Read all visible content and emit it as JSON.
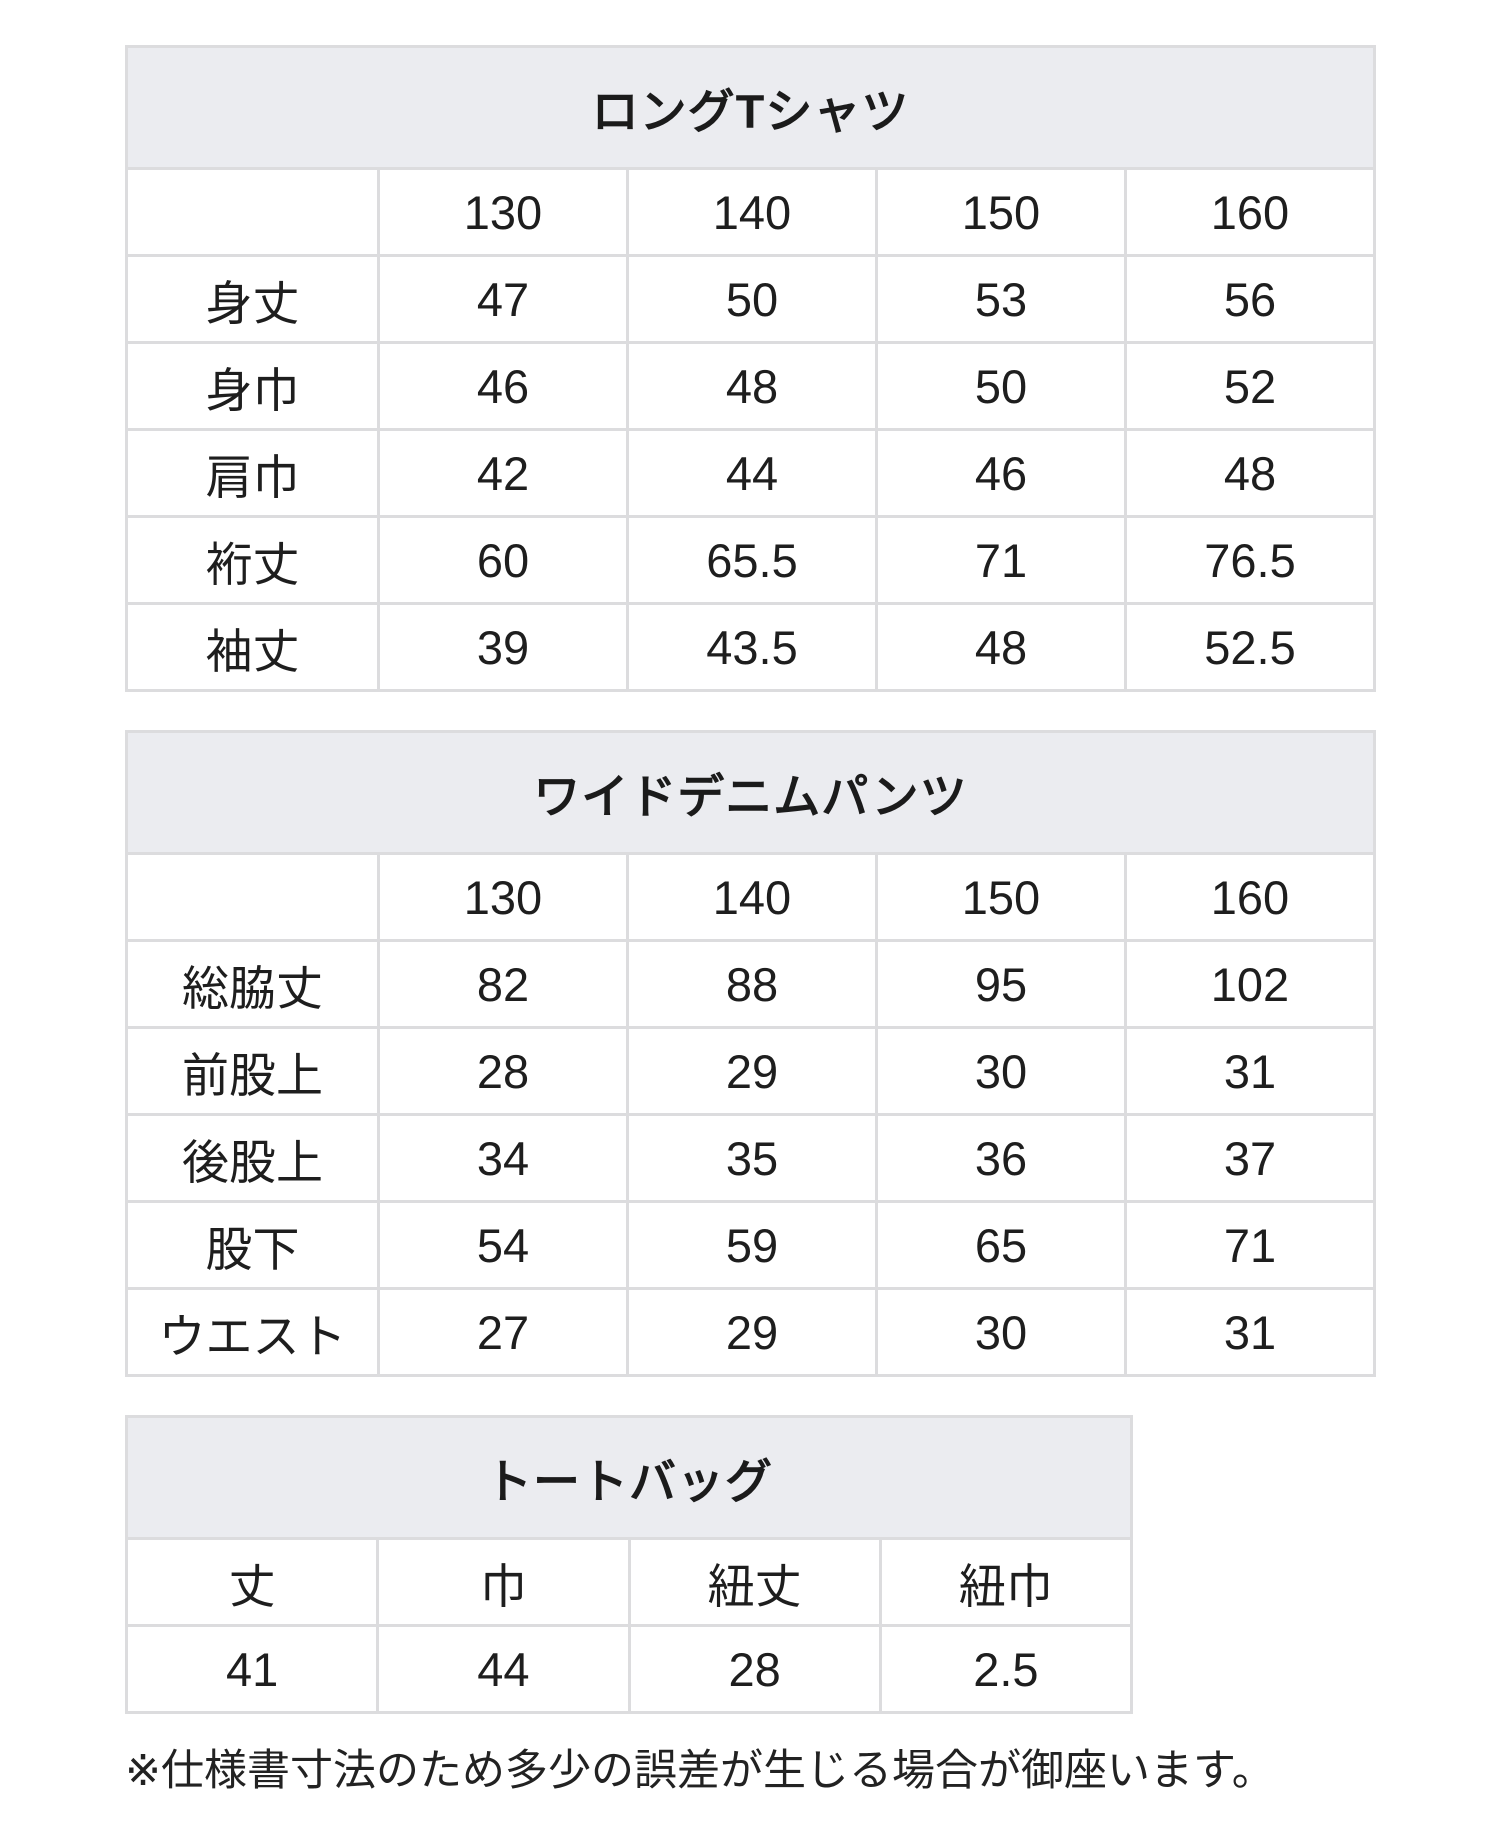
{
  "colors": {
    "title_bar_background": "#ebecf0",
    "cell_border": "#dcdcde",
    "text": "#1e1e1e",
    "page_background": "#ffffff"
  },
  "note": "※仕様書寸法のため多少の誤差が生じる場合が御座います。",
  "tables": [
    {
      "title": "ロングTシャツ",
      "columns": [
        "",
        "130",
        "140",
        "150",
        "160"
      ],
      "rows": [
        {
          "label": "身丈",
          "values": [
            "47",
            "50",
            "53",
            "56"
          ]
        },
        {
          "label": "身巾",
          "values": [
            "46",
            "48",
            "50",
            "52"
          ]
        },
        {
          "label": "肩巾",
          "values": [
            "42",
            "44",
            "46",
            "48"
          ]
        },
        {
          "label": "裄丈",
          "values": [
            "60",
            "65.5",
            "71",
            "76.5"
          ]
        },
        {
          "label": "袖丈",
          "values": [
            "39",
            "43.5",
            "48",
            "52.5"
          ]
        }
      ]
    },
    {
      "title": "ワイドデニムパンツ",
      "columns": [
        "",
        "130",
        "140",
        "150",
        "160"
      ],
      "rows": [
        {
          "label": "総脇丈",
          "values": [
            "82",
            "88",
            "95",
            "102"
          ]
        },
        {
          "label": "前股上",
          "values": [
            "28",
            "29",
            "30",
            "31"
          ]
        },
        {
          "label": "後股上",
          "values": [
            "34",
            "35",
            "36",
            "37"
          ]
        },
        {
          "label": "股下",
          "values": [
            "54",
            "59",
            "65",
            "71"
          ]
        },
        {
          "label": "ウエスト",
          "values": [
            "27",
            "29",
            "30",
            "31"
          ]
        }
      ]
    },
    {
      "title": "トートバッグ",
      "headers": [
        "丈",
        "巾",
        "紐丈",
        "紐巾"
      ],
      "values": [
        "41",
        "44",
        "28",
        "2.5"
      ]
    }
  ]
}
